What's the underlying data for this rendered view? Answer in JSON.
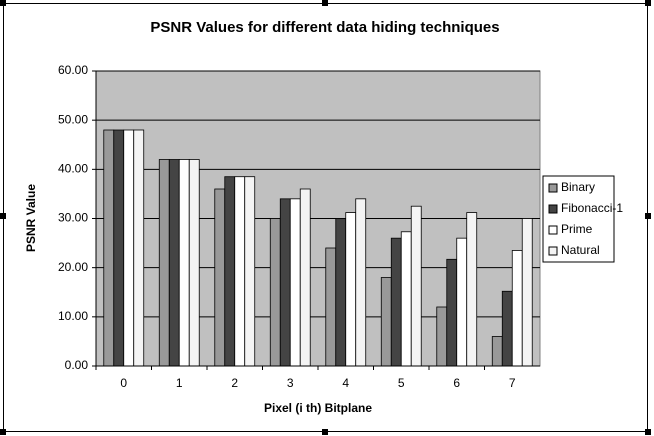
{
  "chart_data": {
    "type": "bar",
    "title": "PSNR Values for different data hiding techniques",
    "x_label": "Pixel (i th) Bitplane",
    "y_label": "PSNR Value",
    "categories": [
      "0",
      "1",
      "2",
      "3",
      "4",
      "5",
      "6",
      "7"
    ],
    "series": [
      {
        "name": "Binary",
        "color": "#999999",
        "values": [
          48,
          42,
          36,
          30,
          24,
          18,
          12,
          6
        ]
      },
      {
        "name": "Fibonacci-1",
        "color": "#444444",
        "values": [
          48,
          42,
          38.5,
          34,
          30,
          26,
          21.7,
          15.2
        ]
      },
      {
        "name": "Prime",
        "color": "#ffffff",
        "values": [
          48,
          42,
          38.5,
          34,
          31.2,
          27.3,
          26,
          23.5
        ]
      },
      {
        "name": "Natural",
        "color": "#f4f4f4",
        "values": [
          48,
          42,
          38.5,
          36,
          34,
          32.5,
          31.2,
          30
        ]
      }
    ],
    "ylim": [
      0,
      60
    ],
    "yticks": [
      {
        "value": 0,
        "label": "0.00"
      },
      {
        "value": 10,
        "label": "10.00"
      },
      {
        "value": 20,
        "label": "20.00"
      },
      {
        "value": 30,
        "label": "30.00"
      },
      {
        "value": 40,
        "label": "40.00"
      },
      {
        "value": 50,
        "label": "50.00"
      },
      {
        "value": 60,
        "label": "60.00"
      }
    ],
    "grid": true,
    "legend": "right"
  }
}
